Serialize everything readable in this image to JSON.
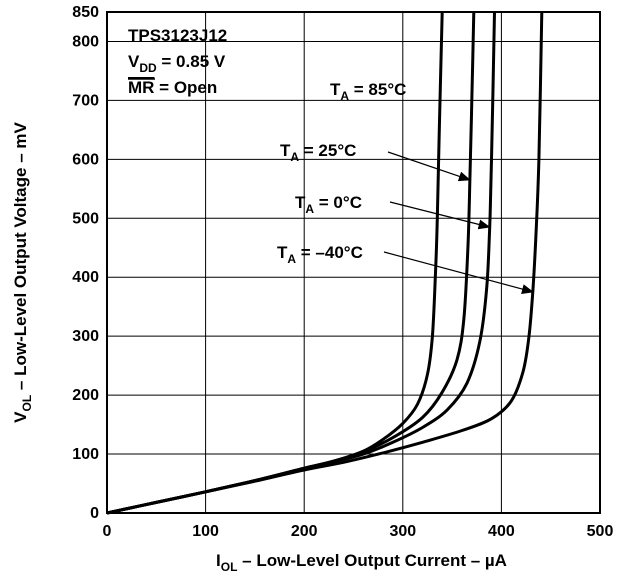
{
  "chart_data": {
    "type": "line",
    "title": "",
    "xlabel": {
      "main": "I",
      "sub": "OL",
      "rest": " – Low-Level Output Current – µA"
    },
    "ylabel": {
      "main": "V",
      "sub": "OL",
      "rest": " – Low-Level Output Voltage – mV"
    },
    "xlim": [
      0,
      500
    ],
    "ylim": [
      0,
      850
    ],
    "x_ticks": [
      0,
      100,
      200,
      300,
      400,
      500
    ],
    "y_ticks": [
      0,
      100,
      200,
      300,
      400,
      500,
      600,
      700,
      800,
      850
    ],
    "grid": true,
    "conditions": {
      "device": "TPS3123J12",
      "vdd": {
        "main": "V",
        "sub": "DD",
        "rest": " = 0.85 V"
      },
      "mr": {
        "over": "MR",
        "rest": " = Open"
      }
    },
    "series": [
      {
        "name": {
          "main": "T",
          "sub": "A",
          "rest": " = 85°C"
        },
        "points": [
          [
            0,
            0
          ],
          [
            50,
            18
          ],
          [
            100,
            36
          ],
          [
            150,
            55
          ],
          [
            200,
            76
          ],
          [
            230,
            88
          ],
          [
            260,
            105
          ],
          [
            280,
            125
          ],
          [
            300,
            152
          ],
          [
            315,
            185
          ],
          [
            325,
            235
          ],
          [
            330,
            300
          ],
          [
            333,
            400
          ],
          [
            335,
            500
          ],
          [
            337,
            650
          ],
          [
            340,
            850
          ]
        ]
      },
      {
        "name": {
          "main": "T",
          "sub": "A",
          "rest": " = 25°C"
        },
        "points": [
          [
            0,
            0
          ],
          [
            50,
            18
          ],
          [
            100,
            36
          ],
          [
            150,
            55
          ],
          [
            200,
            76
          ],
          [
            230,
            88
          ],
          [
            260,
            104
          ],
          [
            290,
            128
          ],
          [
            320,
            162
          ],
          [
            340,
            205
          ],
          [
            355,
            260
          ],
          [
            362,
            330
          ],
          [
            366,
            450
          ],
          [
            368,
            560
          ],
          [
            370,
            700
          ],
          [
            372,
            850
          ]
        ]
      },
      {
        "name": {
          "main": "T",
          "sub": "A",
          "rest": " = 0°C"
        },
        "points": [
          [
            0,
            0
          ],
          [
            50,
            18
          ],
          [
            100,
            36
          ],
          [
            150,
            55
          ],
          [
            200,
            75
          ],
          [
            230,
            87
          ],
          [
            260,
            100
          ],
          [
            290,
            120
          ],
          [
            320,
            145
          ],
          [
            345,
            175
          ],
          [
            365,
            220
          ],
          [
            378,
            290
          ],
          [
            385,
            380
          ],
          [
            388,
            480
          ],
          [
            390,
            600
          ],
          [
            393,
            850
          ]
        ]
      },
      {
        "name": {
          "main": "T",
          "sub": "A",
          "rest": " = –40°C"
        },
        "points": [
          [
            0,
            0
          ],
          [
            50,
            18
          ],
          [
            100,
            36
          ],
          [
            150,
            54
          ],
          [
            200,
            73
          ],
          [
            240,
            86
          ],
          [
            280,
            102
          ],
          [
            320,
            120
          ],
          [
            360,
            140
          ],
          [
            390,
            160
          ],
          [
            410,
            190
          ],
          [
            422,
            240
          ],
          [
            428,
            300
          ],
          [
            432,
            380
          ],
          [
            435,
            470
          ],
          [
            438,
            600
          ],
          [
            441,
            850
          ]
        ]
      }
    ],
    "annotations": [
      {
        "series": 0,
        "at": [
          335,
          720
        ]
      },
      {
        "series": 1,
        "arrow_to": [
          368,
          565
        ]
      },
      {
        "series": 2,
        "arrow_to": [
          388,
          485
        ]
      },
      {
        "series": 3,
        "arrow_to": [
          432,
          375
        ]
      }
    ]
  }
}
